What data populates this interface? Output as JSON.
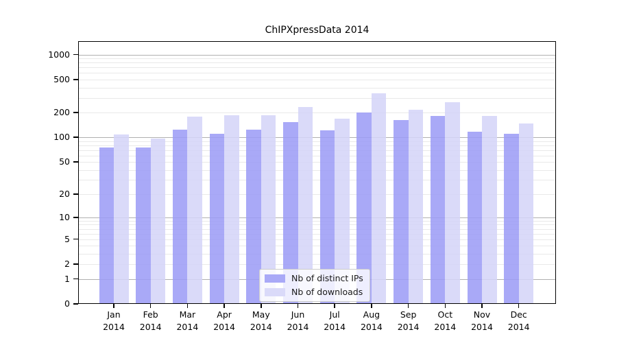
{
  "chart_data": {
    "type": "bar",
    "title": "ChIPXpressData 2014",
    "categories": [
      "Jan 2014",
      "Feb 2014",
      "Mar 2014",
      "Apr 2014",
      "May 2014",
      "Jun 2014",
      "Jul 2014",
      "Aug 2014",
      "Sep 2014",
      "Oct 2014",
      "Nov 2014",
      "Dec 2014"
    ],
    "series": [
      {
        "name": "Nb of distinct IPs",
        "color": "#a9a9f7",
        "values": [
          75,
          75,
          123,
          111,
          125,
          154,
          122,
          200,
          162,
          183,
          116,
          111
        ]
      },
      {
        "name": "Nb of downloads",
        "color": "#dadaf9",
        "values": [
          108,
          97,
          178,
          184,
          184,
          235,
          170,
          340,
          215,
          268,
          181,
          147
        ]
      }
    ],
    "yscale": "log1p",
    "yticks": [
      0,
      1,
      2,
      5,
      10,
      20,
      50,
      100,
      200,
      500,
      1000
    ],
    "ylim": [
      0,
      1450
    ],
    "bar_alpha": 0.87,
    "grid": {
      "on": true,
      "orientation": "horizontal",
      "major_ticks": [
        1,
        10,
        100,
        1000
      ],
      "major_color": "#b0b0b0",
      "minor_color": "#e9e9e9"
    },
    "legend_position": "inside lower-center",
    "xlabel": "",
    "ylabel": ""
  }
}
